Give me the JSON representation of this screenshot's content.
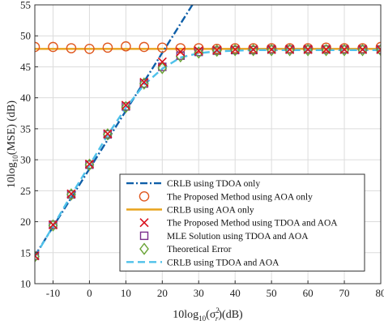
{
  "chart_data": {
    "type": "line",
    "xlabel_prefix": "10log",
    "xlabel_sub": "10",
    "xlabel_paren_open": "(σ",
    "xlabel_sup": "2",
    "xlabel_sub2": "r",
    "xlabel_suffix": ")(dB)",
    "ylabel_prefix": "10log",
    "ylabel_sub": "10",
    "ylabel_suffix": "(MSE) (dB)",
    "xlim": [
      -15,
      80
    ],
    "ylim": [
      10,
      55
    ],
    "xticks": [
      -10,
      0,
      10,
      20,
      30,
      40,
      50,
      60,
      70,
      80
    ],
    "yticks": [
      10,
      15,
      20,
      25,
      30,
      35,
      40,
      45,
      50,
      55
    ],
    "grid": true,
    "legend_position": "bottom-right",
    "series": [
      {
        "name": "CRLB using TDOA only",
        "style": "dashdot",
        "color": "#0f5fa8",
        "x": [
          -15,
          32
        ],
        "y": [
          14.5,
          58.5
        ]
      },
      {
        "name": "The Proposed Method using AOA only",
        "style": "marker-circle",
        "color": "#e0581f",
        "x": [
          -15,
          -10,
          -5,
          0,
          5,
          10,
          15,
          20,
          25,
          30,
          35,
          40,
          45,
          50,
          55,
          60,
          65,
          70,
          75,
          80
        ],
        "y": [
          48.2,
          48.2,
          48.0,
          47.9,
          48.1,
          48.3,
          48.2,
          48.1,
          48.0,
          48.0,
          47.9,
          48.0,
          48.0,
          48.0,
          48.0,
          48.0,
          48.1,
          48.0,
          48.0,
          48.2
        ]
      },
      {
        "name": "CRLB using AOA only",
        "style": "solid",
        "color": "#e8a31c",
        "x": [
          -15,
          80
        ],
        "y": [
          47.9,
          47.9
        ]
      },
      {
        "name": "The Proposed Method using TDOA and AOA",
        "style": "marker-x",
        "color": "#d9121e",
        "x": [
          -15,
          -10,
          -5,
          0,
          5,
          10,
          15,
          20,
          25,
          30,
          35,
          40,
          45,
          50,
          55,
          60,
          65,
          70,
          75,
          80
        ],
        "y": [
          14.5,
          19.5,
          24.5,
          29.3,
          34.2,
          38.8,
          42.5,
          45.8,
          47.4,
          47.6,
          47.7,
          47.8,
          47.8,
          47.8,
          47.8,
          47.8,
          47.8,
          47.8,
          47.8,
          47.8
        ]
      },
      {
        "name": "MLE Solution using TDOA and AOA",
        "style": "marker-square",
        "color": "#7b2f8c",
        "x": [
          -15,
          -10,
          -5,
          0,
          5,
          10,
          15,
          20,
          25,
          30,
          35,
          40,
          45,
          50,
          55,
          60,
          65,
          70,
          75,
          80
        ],
        "y": [
          14.5,
          19.5,
          24.4,
          29.2,
          34.1,
          38.6,
          42.3,
          45.0,
          46.8,
          47.4,
          47.6,
          47.7,
          47.7,
          47.8,
          47.8,
          47.8,
          47.8,
          47.8,
          47.8,
          47.8
        ]
      },
      {
        "name": "Theoretical Error",
        "style": "marker-diamond",
        "color": "#6aa336",
        "x": [
          -15,
          -10,
          -5,
          0,
          5,
          10,
          15,
          20,
          25,
          30,
          35,
          40,
          45,
          50,
          55,
          60,
          65,
          70,
          75,
          80
        ],
        "y": [
          14.4,
          19.4,
          24.4,
          29.2,
          34.1,
          38.5,
          42.3,
          44.8,
          46.7,
          47.3,
          47.6,
          47.7,
          47.7,
          47.7,
          47.7,
          47.7,
          47.7,
          47.7,
          47.7,
          47.7
        ]
      },
      {
        "name": "CRLB using TDOA and AOA",
        "style": "dashed",
        "color": "#4fc1ea",
        "x": [
          -15,
          -10,
          -5,
          0,
          5,
          10,
          15,
          20,
          25,
          30,
          35,
          40,
          45,
          50,
          55,
          60,
          65,
          70,
          75,
          80
        ],
        "y": [
          14.3,
          19.3,
          24.3,
          29.1,
          34.0,
          38.4,
          42.1,
          44.7,
          46.5,
          47.2,
          47.5,
          47.6,
          47.7,
          47.7,
          47.7,
          47.7,
          47.7,
          47.7,
          47.7,
          47.7
        ]
      }
    ]
  }
}
